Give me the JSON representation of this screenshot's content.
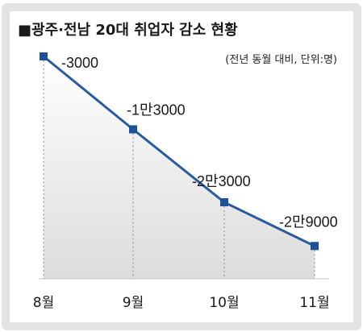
{
  "title": "■광주·전남 20대 취업자 감소 현황",
  "note": "(전년 동월 대비, 단위:명)",
  "colors": {
    "line": "#2a5b9c",
    "marker": "#1f4f94",
    "fill": "#e9e9e9",
    "frame": "#e0e0e0"
  },
  "chart_data": {
    "type": "line",
    "categories": [
      "8월",
      "9월",
      "10월",
      "11월"
    ],
    "values": [
      -3000,
      -13000,
      -23000,
      -29000
    ],
    "value_labels": [
      "-3000",
      "-1만3000",
      "-2만3000",
      "-2만9000"
    ],
    "title": "■광주·전남 20대 취업자 감소 현황",
    "xlabel": "",
    "ylabel": "",
    "ylim": [
      -33500,
      -3000
    ],
    "grid": false,
    "legend": "none"
  }
}
